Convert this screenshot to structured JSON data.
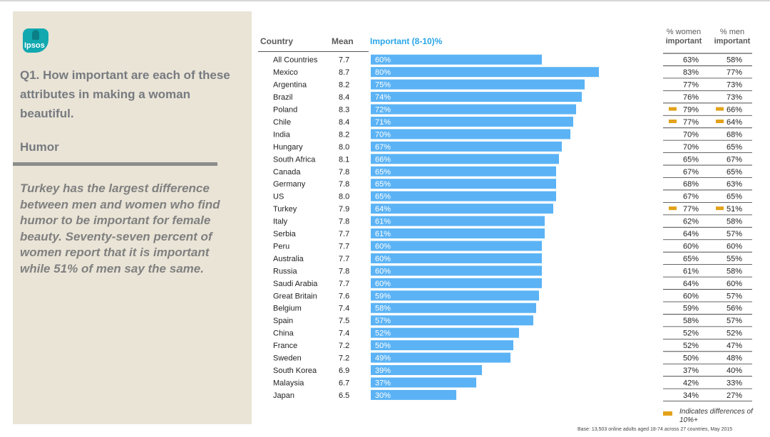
{
  "brand": {
    "logo_text": "Ipsos"
  },
  "panel": {
    "question": "Q1. How important are each of these attributes in making a woman beautiful.",
    "topic": "Humor",
    "insight": "Turkey has the largest difference between men and women who find humor to be important for female beauty. Seventy-seven percent of women report that it is important while 51% of men say the same."
  },
  "headers": {
    "country": "Country",
    "mean": "Mean",
    "important": "Important (8-10)%",
    "women_line1": "% women",
    "women_line2": "important",
    "men_line1": "% men",
    "men_line2": "important"
  },
  "legend": {
    "text": "Indicates differences of 10%+",
    "color": "#e3a21a"
  },
  "footer": {
    "base": "Base: 13,503 online adults aged 18-74 across 27 countries, May 2015"
  },
  "colors": {
    "bar": "#5bb3f5",
    "highlight": "#e3a21a",
    "label_inside": "#ffffff"
  },
  "chart_data": {
    "type": "bar",
    "orientation": "horizontal",
    "categories": [
      "All Countries",
      "Mexico",
      "Argentina",
      "Brazil",
      "Poland",
      "Chile",
      "India",
      "Hungary",
      "South Africa",
      "Canada",
      "Germany",
      "US",
      "Turkey",
      "Italy",
      "Serbia",
      "Peru",
      "Australia",
      "Russia",
      "Saudi Arabia",
      "Great Britain",
      "Belgium",
      "Spain",
      "China",
      "France",
      "Sweden",
      "South Korea",
      "Malaysia",
      "Japan"
    ],
    "mean": [
      "7.7",
      "8.7",
      "8.2",
      "8.4",
      "8.3",
      "8.4",
      "8.2",
      "8.0",
      "8.1",
      "7.8",
      "7.8",
      "8.0",
      "7.9",
      "7.8",
      "7.7",
      "7.7",
      "7.7",
      "7.8",
      "7.7",
      "7.6",
      "7.4",
      "7.5",
      "7.4",
      "7.2",
      "7.2",
      "6.9",
      "6.7",
      "6.5"
    ],
    "values": [
      60,
      80,
      75,
      74,
      72,
      71,
      70,
      67,
      66,
      65,
      65,
      65,
      64,
      61,
      61,
      60,
      60,
      60,
      60,
      59,
      58,
      57,
      52,
      50,
      49,
      39,
      37,
      30
    ],
    "women": [
      63,
      83,
      77,
      76,
      79,
      77,
      70,
      70,
      65,
      67,
      68,
      67,
      77,
      62,
      64,
      60,
      65,
      61,
      64,
      60,
      59,
      58,
      52,
      52,
      50,
      37,
      42,
      34
    ],
    "men": [
      58,
      77,
      73,
      73,
      66,
      64,
      68,
      65,
      67,
      65,
      63,
      65,
      51,
      58,
      57,
      60,
      55,
      58,
      60,
      57,
      56,
      57,
      52,
      47,
      48,
      40,
      33,
      27
    ],
    "highlight": [
      false,
      false,
      false,
      false,
      true,
      true,
      false,
      false,
      false,
      false,
      false,
      false,
      true,
      false,
      false,
      false,
      false,
      false,
      false,
      false,
      false,
      false,
      false,
      false,
      false,
      false,
      false,
      false
    ],
    "xlim": [
      0,
      100
    ],
    "value_suffix": "%"
  }
}
